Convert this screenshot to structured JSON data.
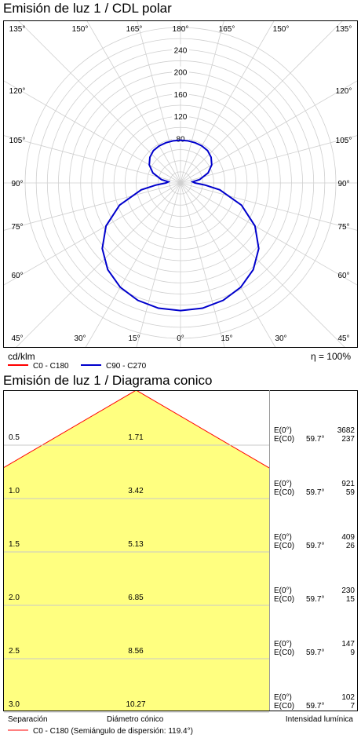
{
  "polar": {
    "title": "Emisión de luz 1 / CDL polar",
    "unit_label": "cd/klm",
    "efficiency": "η = 100%",
    "legend": [
      {
        "label": "C0 - C180",
        "color": "#ff0000"
      },
      {
        "label": "C90 - C270",
        "color": "#0000cc"
      }
    ],
    "top_angle_labels": [
      "135°",
      "150°",
      "165°",
      "180°",
      "165°",
      "150°",
      "135°"
    ],
    "bottom_angle_labels": [
      "45°",
      "30°",
      "15°",
      "0°",
      "15°",
      "30°",
      "45°"
    ],
    "side_angle_labels": [
      "120°",
      "105°",
      "90°",
      "75°",
      "60°"
    ]
  },
  "cone": {
    "title": "Emisión de luz 1 / Diagrama conico",
    "footer": {
      "separation": "Separación",
      "diameter": "Diámetro cónico",
      "intensity": "Intensidad lumínica"
    },
    "legend": "C0 - C180 (Semiángulo de dispersión: 119.4°)",
    "rows": [
      {
        "sep": "0.5",
        "diam": "1.71",
        "e0_label": "E(0°)",
        "ec0_label": "E(C0)",
        "angle": "59.7°",
        "e0": "3682",
        "ec0": "237"
      },
      {
        "sep": "1.0",
        "diam": "3.42",
        "e0_label": "E(0°)",
        "ec0_label": "E(C0)",
        "angle": "59.7°",
        "e0": "921",
        "ec0": "59"
      },
      {
        "sep": "1.5",
        "diam": "5.13",
        "e0_label": "E(0°)",
        "ec0_label": "E(C0)",
        "angle": "59.7°",
        "e0": "409",
        "ec0": "26"
      },
      {
        "sep": "2.0",
        "diam": "6.85",
        "e0_label": "E(0°)",
        "ec0_label": "E(C0)",
        "angle": "59.7°",
        "e0": "230",
        "ec0": "15"
      },
      {
        "sep": "2.5",
        "diam": "8.56",
        "e0_label": "E(0°)",
        "ec0_label": "E(C0)",
        "angle": "59.7°",
        "e0": "147",
        "ec0": "9"
      },
      {
        "sep": "3.0",
        "diam": "10.27",
        "e0_label": "E(0°)",
        "ec0_label": "E(C0)",
        "angle": "59.7°",
        "e0": "102",
        "ec0": "7"
      }
    ],
    "fill_color": "#ffff80",
    "edge_color": "#ff0000"
  },
  "chart_data": [
    {
      "type": "polar",
      "title": "Emisión de luz 1 / CDL polar",
      "unit": "cd/klm",
      "radial_ticks": [
        80,
        120,
        160,
        200,
        240
      ],
      "r_max": 280,
      "angle_ticks_deg": [
        0,
        15,
        30,
        45,
        60,
        75,
        90,
        105,
        120,
        135,
        150,
        165,
        180
      ],
      "series": [
        {
          "name": "C0 - C180",
          "color": "#ff0000",
          "points": []
        },
        {
          "name": "C90 - C270",
          "color": "#0000cc",
          "points": [
            [
              0,
              230
            ],
            [
              10,
              229
            ],
            [
              20,
              225
            ],
            [
              30,
              217
            ],
            [
              40,
              204
            ],
            [
              50,
              184
            ],
            [
              60,
              155
            ],
            [
              70,
              117
            ],
            [
              80,
              72
            ],
            [
              85,
              45
            ],
            [
              90,
              26
            ],
            [
              95,
              22
            ],
            [
              100,
              35
            ],
            [
              110,
              53
            ],
            [
              120,
              65
            ],
            [
              130,
              72
            ],
            [
              140,
              76
            ],
            [
              150,
              77
            ],
            [
              160,
              77
            ],
            [
              170,
              77
            ],
            [
              180,
              77
            ]
          ]
        }
      ]
    },
    {
      "type": "table",
      "title": "Emisión de luz 1 / Diagrama conico",
      "columns": [
        "Separación",
        "Diámetro cónico",
        "E(0°)",
        "E(C0)"
      ],
      "rows": [
        [
          0.5,
          1.71,
          3682,
          237
        ],
        [
          1.0,
          3.42,
          921,
          59
        ],
        [
          1.5,
          5.13,
          409,
          26
        ],
        [
          2.0,
          6.85,
          230,
          15
        ],
        [
          2.5,
          8.56,
          147,
          9
        ],
        [
          3.0,
          10.27,
          102,
          7
        ]
      ],
      "half_angle_deg": 59.7
    }
  ]
}
